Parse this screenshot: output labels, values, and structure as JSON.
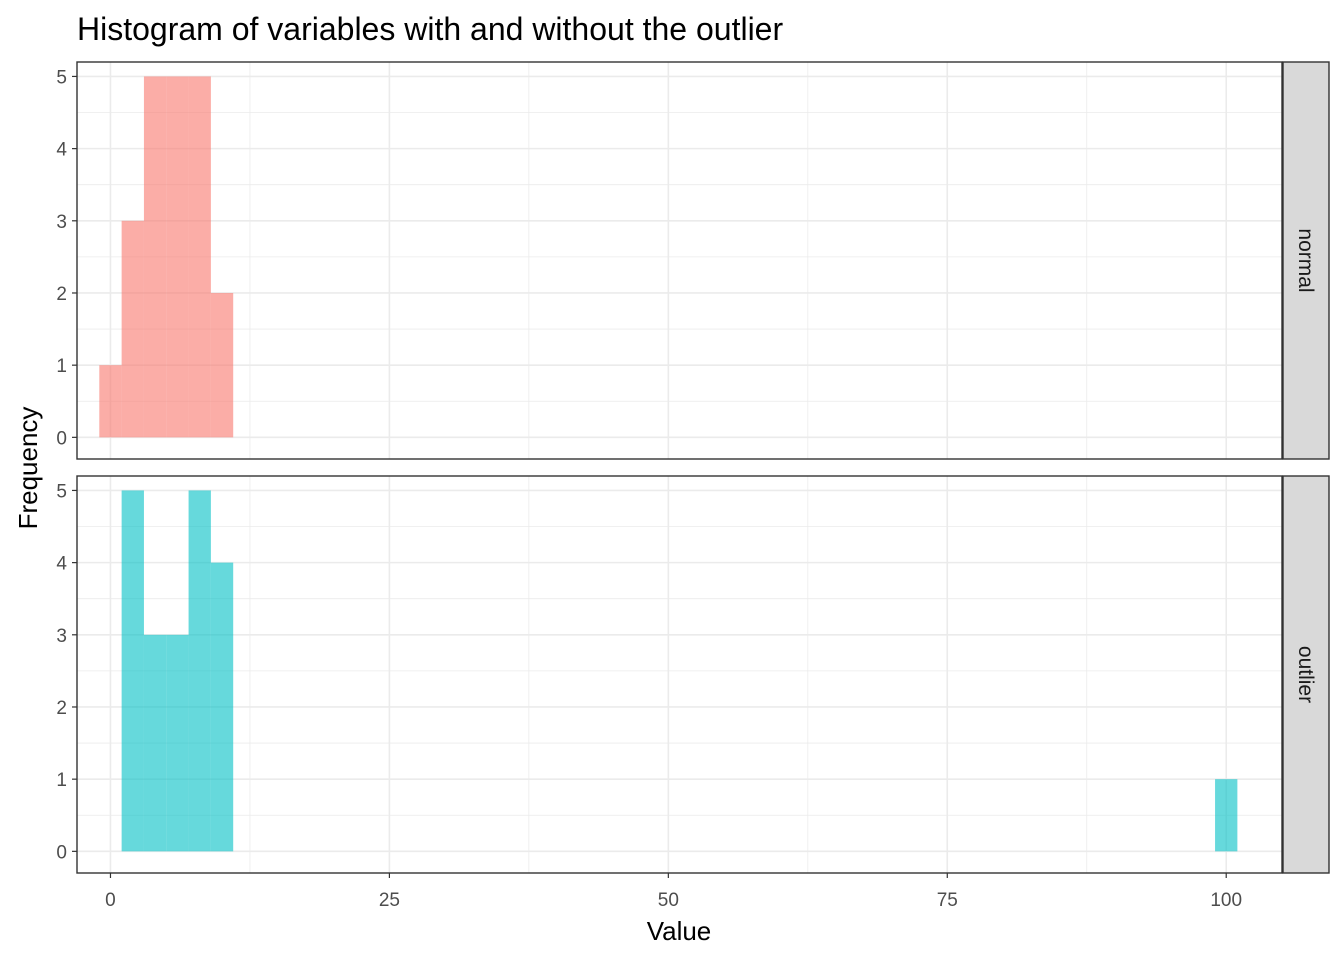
{
  "chart_data": {
    "type": "bar",
    "subtype": "faceted-histogram",
    "title": "Histogram of variables with and without the outlier",
    "xlabel": "Value",
    "ylabel": "Frequency",
    "xlim": [
      -3,
      105
    ],
    "x_ticks": [
      0,
      25,
      50,
      75,
      100
    ],
    "ylim": [
      -0.3,
      5.2
    ],
    "y_ticks": [
      0,
      1,
      2,
      3,
      4,
      5
    ],
    "grid": true,
    "legend": "none",
    "bin_width": 2,
    "facets": [
      {
        "label": "normal",
        "color": "#F8766D",
        "bins": [
          {
            "x0": -1,
            "x1": 1,
            "count": 1
          },
          {
            "x0": 1,
            "x1": 3,
            "count": 3
          },
          {
            "x0": 3,
            "x1": 5,
            "count": 5
          },
          {
            "x0": 5,
            "x1": 7,
            "count": 5
          },
          {
            "x0": 7,
            "x1": 9,
            "count": 5
          },
          {
            "x0": 9,
            "x1": 11,
            "count": 2
          }
        ]
      },
      {
        "label": "outlier",
        "color": "#00BFC4",
        "bins": [
          {
            "x0": 1,
            "x1": 3,
            "count": 5
          },
          {
            "x0": 3,
            "x1": 5,
            "count": 3
          },
          {
            "x0": 5,
            "x1": 7,
            "count": 3
          },
          {
            "x0": 7,
            "x1": 9,
            "count": 5
          },
          {
            "x0": 9,
            "x1": 11,
            "count": 4
          },
          {
            "x0": 97,
            "x1": 99,
            "count": 0
          },
          {
            "x0": 99,
            "x1": 101,
            "count": 1
          }
        ]
      }
    ]
  }
}
